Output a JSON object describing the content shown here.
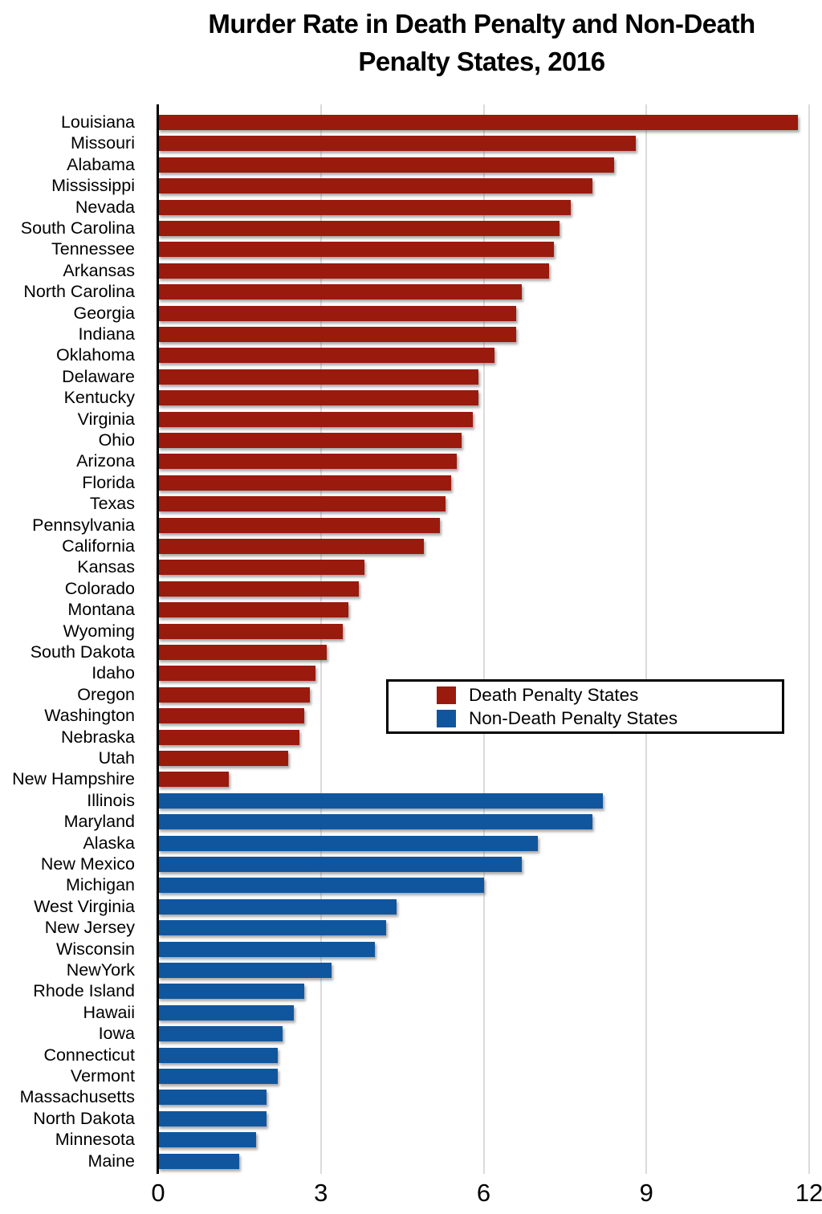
{
  "title": {
    "line1": "Murder Rate in Death Penalty and Non-Death",
    "line2": "Penalty States, 2016"
  },
  "legend": [
    {
      "label": "Death Penalty States",
      "color": "#9b1a0e"
    },
    {
      "label": "Non-Death Penalty States",
      "color": "#10569f"
    }
  ],
  "chart_data": {
    "type": "bar",
    "orientation": "horizontal",
    "title": "Murder Rate in Death Penalty and Non-Death Penalty States, 2016",
    "xlabel": "",
    "ylabel": "",
    "xlim": [
      0,
      12
    ],
    "xticks": [
      "0",
      "3",
      "6",
      "9",
      "12"
    ],
    "grid": true,
    "legend_position": "center-right",
    "series": [
      {
        "name": "Death Penalty States",
        "color": "#9b1a0e",
        "data": [
          {
            "state": "Louisiana",
            "value": 11.8
          },
          {
            "state": "Missouri",
            "value": 8.8
          },
          {
            "state": "Alabama",
            "value": 8.4
          },
          {
            "state": "Mississippi",
            "value": 8.0
          },
          {
            "state": "Nevada",
            "value": 7.6
          },
          {
            "state": "South Carolina",
            "value": 7.4
          },
          {
            "state": "Tennessee",
            "value": 7.3
          },
          {
            "state": "Arkansas",
            "value": 7.2
          },
          {
            "state": "North Carolina",
            "value": 6.7
          },
          {
            "state": "Georgia",
            "value": 6.6
          },
          {
            "state": "Indiana",
            "value": 6.6
          },
          {
            "state": "Oklahoma",
            "value": 6.2
          },
          {
            "state": "Delaware",
            "value": 5.9
          },
          {
            "state": "Kentucky",
            "value": 5.9
          },
          {
            "state": "Virginia",
            "value": 5.8
          },
          {
            "state": "Ohio",
            "value": 5.6
          },
          {
            "state": "Arizona",
            "value": 5.5
          },
          {
            "state": "Florida",
            "value": 5.4
          },
          {
            "state": "Texas",
            "value": 5.3
          },
          {
            "state": "Pennsylvania",
            "value": 5.2
          },
          {
            "state": "California",
            "value": 4.9
          },
          {
            "state": "Kansas",
            "value": 3.8
          },
          {
            "state": "Colorado",
            "value": 3.7
          },
          {
            "state": "Montana",
            "value": 3.5
          },
          {
            "state": "Wyoming",
            "value": 3.4
          },
          {
            "state": "South Dakota",
            "value": 3.1
          },
          {
            "state": "Idaho",
            "value": 2.9
          },
          {
            "state": "Oregon",
            "value": 2.8
          },
          {
            "state": "Washington",
            "value": 2.7
          },
          {
            "state": "Nebraska",
            "value": 2.6
          },
          {
            "state": "Utah",
            "value": 2.4
          },
          {
            "state": "New Hampshire",
            "value": 1.3
          }
        ]
      },
      {
        "name": "Non-Death Penalty States",
        "color": "#10569f",
        "data": [
          {
            "state": "Illinois",
            "value": 8.2
          },
          {
            "state": "Maryland",
            "value": 8.0
          },
          {
            "state": "Alaska",
            "value": 7.0
          },
          {
            "state": "New Mexico",
            "value": 6.7
          },
          {
            "state": "Michigan",
            "value": 6.0
          },
          {
            "state": "West Virginia",
            "value": 4.4
          },
          {
            "state": "New Jersey",
            "value": 4.2
          },
          {
            "state": "Wisconsin",
            "value": 4.0
          },
          {
            "state": "NewYork",
            "value": 3.2
          },
          {
            "state": "Rhode Island",
            "value": 2.7
          },
          {
            "state": "Hawaii",
            "value": 2.5
          },
          {
            "state": "Iowa",
            "value": 2.3
          },
          {
            "state": "Connecticut",
            "value": 2.2
          },
          {
            "state": "Vermont",
            "value": 2.2
          },
          {
            "state": "Massachusetts",
            "value": 2.0
          },
          {
            "state": "North Dakota",
            "value": 2.0
          },
          {
            "state": "Minnesota",
            "value": 1.8
          },
          {
            "state": "Maine",
            "value": 1.5
          }
        ]
      }
    ]
  }
}
